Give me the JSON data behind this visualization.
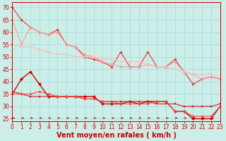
{
  "xlabel": "Vent moyen/en rafales ( km/h )",
  "background_color": "#cceee8",
  "grid_color": "#aadddd",
  "x_ticks": [
    0,
    1,
    2,
    3,
    4,
    5,
    6,
    7,
    8,
    9,
    10,
    11,
    12,
    13,
    14,
    15,
    16,
    17,
    18,
    19,
    20,
    21,
    22,
    23
  ],
  "ylim": [
    24,
    72
  ],
  "xlim": [
    0,
    23
  ],
  "yticks": [
    25,
    30,
    35,
    40,
    45,
    50,
    55,
    60,
    65,
    70
  ],
  "lines": [
    {
      "color": "#ee3333",
      "linewidth": 0.8,
      "marker": "D",
      "markersize": 1.8,
      "data_x": [
        0,
        1,
        2,
        3,
        4,
        5,
        6,
        7,
        8,
        9,
        10,
        11,
        12,
        13,
        14,
        15,
        16,
        17,
        18,
        19,
        20,
        21,
        22,
        23
      ],
      "data_y": [
        70,
        65,
        62,
        60,
        59,
        61,
        55,
        54,
        50,
        49,
        48,
        46,
        52,
        46,
        46,
        52,
        46,
        46,
        49,
        44,
        39,
        41,
        42,
        41
      ]
    },
    {
      "color": "#ff9999",
      "linewidth": 0.8,
      "marker": "D",
      "markersize": 1.8,
      "data_x": [
        0,
        1,
        2,
        3,
        4,
        5,
        6,
        7,
        8,
        9,
        10,
        11,
        12,
        13,
        14,
        15,
        16,
        17,
        18,
        19,
        20,
        21,
        22,
        23
      ],
      "data_y": [
        65,
        55,
        62,
        60,
        59,
        60,
        55,
        54,
        51,
        50,
        48,
        47,
        46,
        46,
        46,
        47,
        46,
        46,
        48,
        44,
        43,
        41,
        42,
        41
      ]
    },
    {
      "color": "#ffbbbb",
      "linewidth": 0.8,
      "marker": "s",
      "markersize": 1.8,
      "data_x": [
        0,
        1,
        2,
        3,
        4,
        5,
        6,
        7,
        8,
        9,
        10,
        11,
        12,
        13,
        14,
        15,
        16,
        17,
        18,
        19,
        20,
        21,
        22,
        23
      ],
      "data_y": [
        55,
        54,
        54,
        53,
        52,
        51,
        51,
        50,
        50,
        50,
        49,
        49,
        48,
        48,
        48,
        47,
        46,
        46,
        45,
        44,
        43,
        43,
        43,
        42
      ]
    },
    {
      "color": "#cc0000",
      "linewidth": 1.0,
      "marker": "D",
      "markersize": 2.2,
      "data_x": [
        0,
        1,
        2,
        3,
        4,
        5,
        6,
        7,
        8,
        9,
        10,
        11,
        12,
        13,
        14,
        15,
        16,
        17,
        18,
        19,
        20,
        21,
        22,
        23
      ],
      "data_y": [
        35,
        41,
        44,
        39,
        34,
        34,
        34,
        34,
        34,
        34,
        31,
        31,
        31,
        32,
        31,
        32,
        32,
        32,
        28,
        28,
        25,
        25,
        25,
        30
      ]
    },
    {
      "color": "#cc2222",
      "linewidth": 0.8,
      "marker": "s",
      "markersize": 1.8,
      "data_x": [
        0,
        1,
        2,
        3,
        4,
        5,
        6,
        7,
        8,
        9,
        10,
        11,
        12,
        13,
        14,
        15,
        16,
        17,
        18,
        19,
        20,
        21,
        22,
        23
      ],
      "data_y": [
        36,
        35,
        34,
        34,
        34,
        34,
        34,
        34,
        33,
        33,
        32,
        32,
        32,
        32,
        32,
        32,
        31,
        31,
        31,
        30,
        30,
        30,
        30,
        31
      ]
    },
    {
      "color": "#ff4444",
      "linewidth": 0.8,
      "marker": "D",
      "markersize": 1.8,
      "data_x": [
        0,
        1,
        2,
        3,
        4,
        5,
        6,
        7,
        8,
        9,
        10,
        11,
        12,
        13,
        14,
        15,
        16,
        17,
        18,
        19,
        20,
        21,
        22,
        23
      ],
      "data_y": [
        35,
        35,
        35,
        36,
        35,
        34,
        34,
        34,
        33,
        33,
        32,
        32,
        31,
        31,
        31,
        31,
        32,
        32,
        28,
        28,
        26,
        26,
        26,
        30
      ]
    }
  ],
  "font_color": "#cc0000",
  "tick_fontsize": 5.5,
  "xlabel_fontsize": 7.0
}
